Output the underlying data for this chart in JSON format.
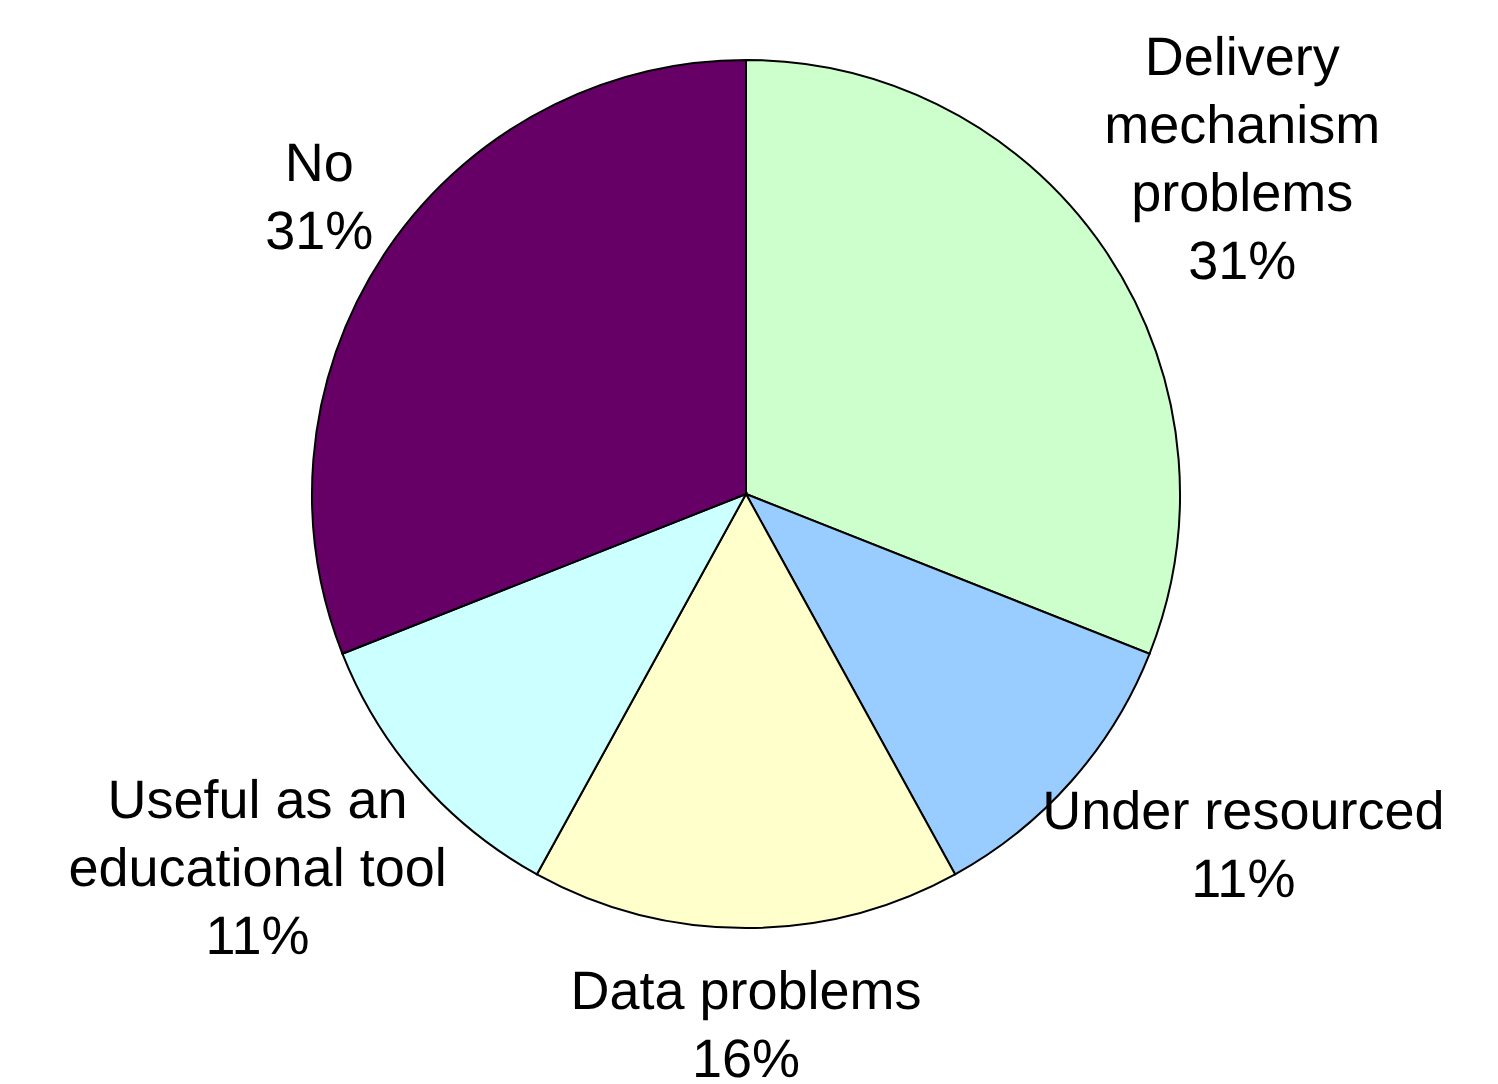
{
  "chart_data": {
    "type": "pie",
    "categories": [
      "Delivery mechanism problems",
      "Under resourced",
      "Data problems",
      "Useful as an educational tool",
      "No"
    ],
    "values": [
      31,
      11,
      16,
      11,
      31
    ],
    "colors": [
      "#ccffcc",
      "#99ccff",
      "#ffffcc",
      "#ccffff",
      "#660066"
    ],
    "value_labels": [
      "31%",
      "11%",
      "16%",
      "11%",
      "31%"
    ]
  }
}
